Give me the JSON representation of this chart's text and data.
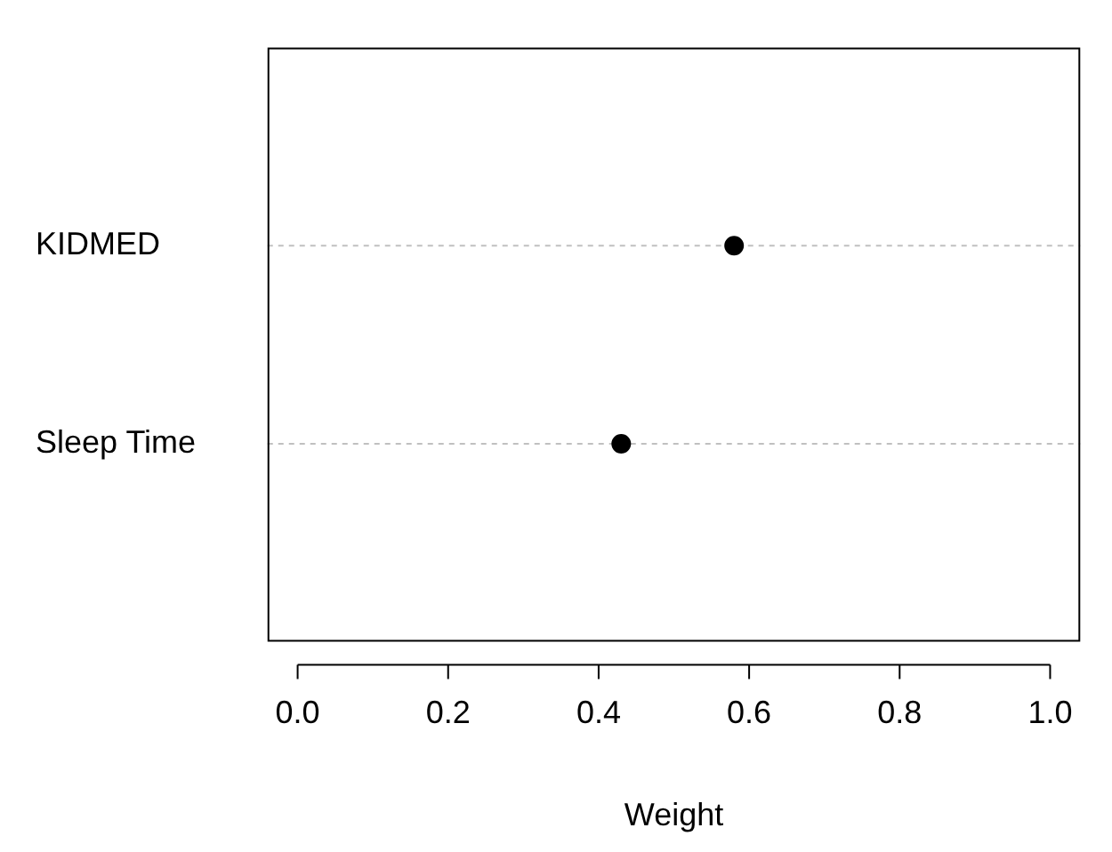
{
  "chart_data": {
    "type": "scatter",
    "orientation": "horizontal",
    "categories": [
      "KIDMED",
      "Sleep Time"
    ],
    "values": [
      0.58,
      0.43
    ],
    "color": "#000000",
    "marker": "circle",
    "grid": "y",
    "xlabel": "Weight",
    "xlim": [
      -0.04,
      1.04
    ],
    "xticks": [
      {
        "value": 0,
        "label": "0.0"
      },
      0.2,
      0.4,
      0.6,
      0.8,
      {
        "value": 1,
        "label": "1.0"
      }
    ]
  }
}
